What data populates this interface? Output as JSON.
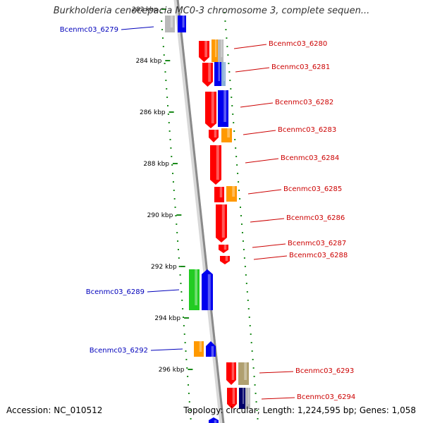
{
  "title": "Burkholderia cenocepacia MC0-3 chromosome 3, complete sequen...",
  "accession_text": "Accession: NC_010512",
  "topology_text": "Topology: circular; Length: 1,224,595 bp; Genes: 1,058",
  "colors": {
    "backbone": "#8a8a8a",
    "tick": "#1a8a1a",
    "forward_label": "#0000bb",
    "reverse_label": "#cc0000",
    "red": "#ff0000",
    "blue": "#0000ee",
    "green": "#22cc22",
    "orange": "#ff9900",
    "khaki": "#b0a070",
    "gray": "#b8b8b8",
    "navy": "#00006a"
  },
  "chart_data": {
    "type": "linear-genome-map",
    "ticks": [
      {
        "kbp": 282,
        "label": "282 kbp"
      },
      {
        "kbp": 284,
        "label": "284 kbp"
      },
      {
        "kbp": 286,
        "label": "286 kbp"
      },
      {
        "kbp": 288,
        "label": "288 kbp"
      },
      {
        "kbp": 290,
        "label": "290 kbp"
      },
      {
        "kbp": 292,
        "label": "292 kbp"
      },
      {
        "kbp": 294,
        "label": "294 kbp"
      },
      {
        "kbp": 296,
        "label": "296 kbp"
      }
    ],
    "labels": [
      {
        "name": "Bcenmc03_6279",
        "strand": "+"
      },
      {
        "name": "Bcenmc03_6280",
        "strand": "-"
      },
      {
        "name": "Bcenmc03_6281",
        "strand": "-"
      },
      {
        "name": "Bcenmc03_6282",
        "strand": "-"
      },
      {
        "name": "Bcenmc03_6283",
        "strand": "-"
      },
      {
        "name": "Bcenmc03_6284",
        "strand": "-"
      },
      {
        "name": "Bcenmc03_6285",
        "strand": "-"
      },
      {
        "name": "Bcenmc03_6286",
        "strand": "-"
      },
      {
        "name": "Bcenmc03_6287",
        "strand": "-"
      },
      {
        "name": "Bcenmc03_6288",
        "strand": "-"
      },
      {
        "name": "Bcenmc03_6289",
        "strand": "+"
      },
      {
        "name": "Bcenmc03_6292",
        "strand": "+"
      },
      {
        "name": "Bcenmc03_6293",
        "strand": "-"
      },
      {
        "name": "Bcenmc03_6294",
        "strand": "-"
      }
    ]
  }
}
